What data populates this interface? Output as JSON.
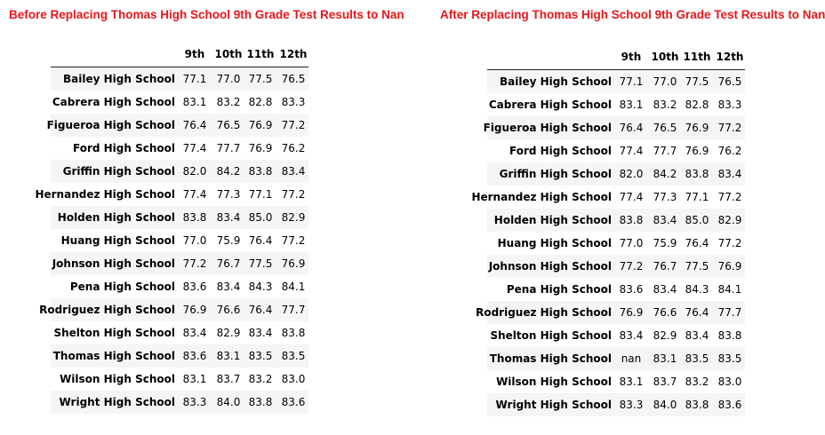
{
  "left": {
    "title": "Before Replacing Thomas High School 9th Grade Test Results to Nan",
    "columns": [
      "9th",
      "10th",
      "11th",
      "12th"
    ],
    "rows": [
      {
        "school": "Bailey High School",
        "values": [
          "77.1",
          "77.0",
          "77.5",
          "76.5"
        ]
      },
      {
        "school": "Cabrera High School",
        "values": [
          "83.1",
          "83.2",
          "82.8",
          "83.3"
        ]
      },
      {
        "school": "Figueroa High School",
        "values": [
          "76.4",
          "76.5",
          "76.9",
          "77.2"
        ]
      },
      {
        "school": "Ford High School",
        "values": [
          "77.4",
          "77.7",
          "76.9",
          "76.2"
        ]
      },
      {
        "school": "Griffin High School",
        "values": [
          "82.0",
          "84.2",
          "83.8",
          "83.4"
        ]
      },
      {
        "school": "Hernandez High School",
        "values": [
          "77.4",
          "77.3",
          "77.1",
          "77.2"
        ]
      },
      {
        "school": "Holden High School",
        "values": [
          "83.8",
          "83.4",
          "85.0",
          "82.9"
        ]
      },
      {
        "school": "Huang High School",
        "values": [
          "77.0",
          "75.9",
          "76.4",
          "77.2"
        ]
      },
      {
        "school": "Johnson High School",
        "values": [
          "77.2",
          "76.7",
          "77.5",
          "76.9"
        ]
      },
      {
        "school": "Pena High School",
        "values": [
          "83.6",
          "83.4",
          "84.3",
          "84.1"
        ]
      },
      {
        "school": "Rodriguez High School",
        "values": [
          "76.9",
          "76.6",
          "76.4",
          "77.7"
        ]
      },
      {
        "school": "Shelton High School",
        "values": [
          "83.4",
          "82.9",
          "83.4",
          "83.8"
        ]
      },
      {
        "school": "Thomas High School",
        "values": [
          "83.6",
          "83.1",
          "83.5",
          "83.5"
        ]
      },
      {
        "school": "Wilson High School",
        "values": [
          "83.1",
          "83.7",
          "83.2",
          "83.0"
        ]
      },
      {
        "school": "Wright High School",
        "values": [
          "83.3",
          "84.0",
          "83.8",
          "83.6"
        ]
      }
    ]
  },
  "right": {
    "title": "After Replacing Thomas High School 9th Grade Test Results to Nan",
    "columns": [
      "9th",
      "10th",
      "11th",
      "12th"
    ],
    "rows": [
      {
        "school": "Bailey High School",
        "values": [
          "77.1",
          "77.0",
          "77.5",
          "76.5"
        ]
      },
      {
        "school": "Cabrera High School",
        "values": [
          "83.1",
          "83.2",
          "82.8",
          "83.3"
        ]
      },
      {
        "school": "Figueroa High School",
        "values": [
          "76.4",
          "76.5",
          "76.9",
          "77.2"
        ]
      },
      {
        "school": "Ford High School",
        "values": [
          "77.4",
          "77.7",
          "76.9",
          "76.2"
        ]
      },
      {
        "school": "Griffin High School",
        "values": [
          "82.0",
          "84.2",
          "83.8",
          "83.4"
        ]
      },
      {
        "school": "Hernandez High School",
        "values": [
          "77.4",
          "77.3",
          "77.1",
          "77.2"
        ]
      },
      {
        "school": "Holden High School",
        "values": [
          "83.8",
          "83.4",
          "85.0",
          "82.9"
        ]
      },
      {
        "school": "Huang High School",
        "values": [
          "77.0",
          "75.9",
          "76.4",
          "77.2"
        ]
      },
      {
        "school": "Johnson High School",
        "values": [
          "77.2",
          "76.7",
          "77.5",
          "76.9"
        ]
      },
      {
        "school": "Pena High School",
        "values": [
          "83.6",
          "83.4",
          "84.3",
          "84.1"
        ]
      },
      {
        "school": "Rodriguez High School",
        "values": [
          "76.9",
          "76.6",
          "76.4",
          "77.7"
        ]
      },
      {
        "school": "Shelton High School",
        "values": [
          "83.4",
          "82.9",
          "83.4",
          "83.8"
        ]
      },
      {
        "school": "Thomas High School",
        "values": [
          "nan",
          "83.1",
          "83.5",
          "83.5"
        ]
      },
      {
        "school": "Wilson High School",
        "values": [
          "83.1",
          "83.7",
          "83.2",
          "83.0"
        ]
      },
      {
        "school": "Wright High School",
        "values": [
          "83.3",
          "84.0",
          "83.8",
          "83.6"
        ]
      }
    ]
  }
}
